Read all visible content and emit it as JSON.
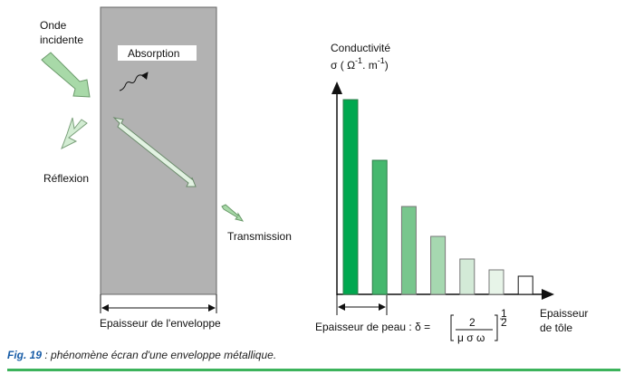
{
  "left": {
    "incident": [
      "Onde",
      "incidente"
    ],
    "absorption": "Absorption",
    "reflexion": "Réflexion",
    "transmission": "Transmission",
    "thickness": "Epaisseur de l'enveloppe"
  },
  "chart_data": {
    "type": "bar",
    "ylabel": [
      "Conductivité",
      "σ ( Ω",
      "-1",
      ". m",
      "-1",
      ")"
    ],
    "xlabel": [
      "Epaisseur",
      "de tôle"
    ],
    "values": [
      215,
      148,
      97,
      64,
      39,
      27,
      20
    ],
    "colors": [
      "#00a84f",
      "#45b86e",
      "#78c68d",
      "#a6d8b0",
      "#d3ead7",
      "#e7f4e8",
      "#ffffff"
    ],
    "skin": {
      "label": "Epaisseur de peau : δ =",
      "num": "2",
      "den": "μ σ ω",
      "exp_num": "1",
      "exp_den": "2"
    }
  },
  "caption": {
    "fig": "Fig. 19",
    "text": " : phénomène écran d'une enveloppe métallique."
  }
}
